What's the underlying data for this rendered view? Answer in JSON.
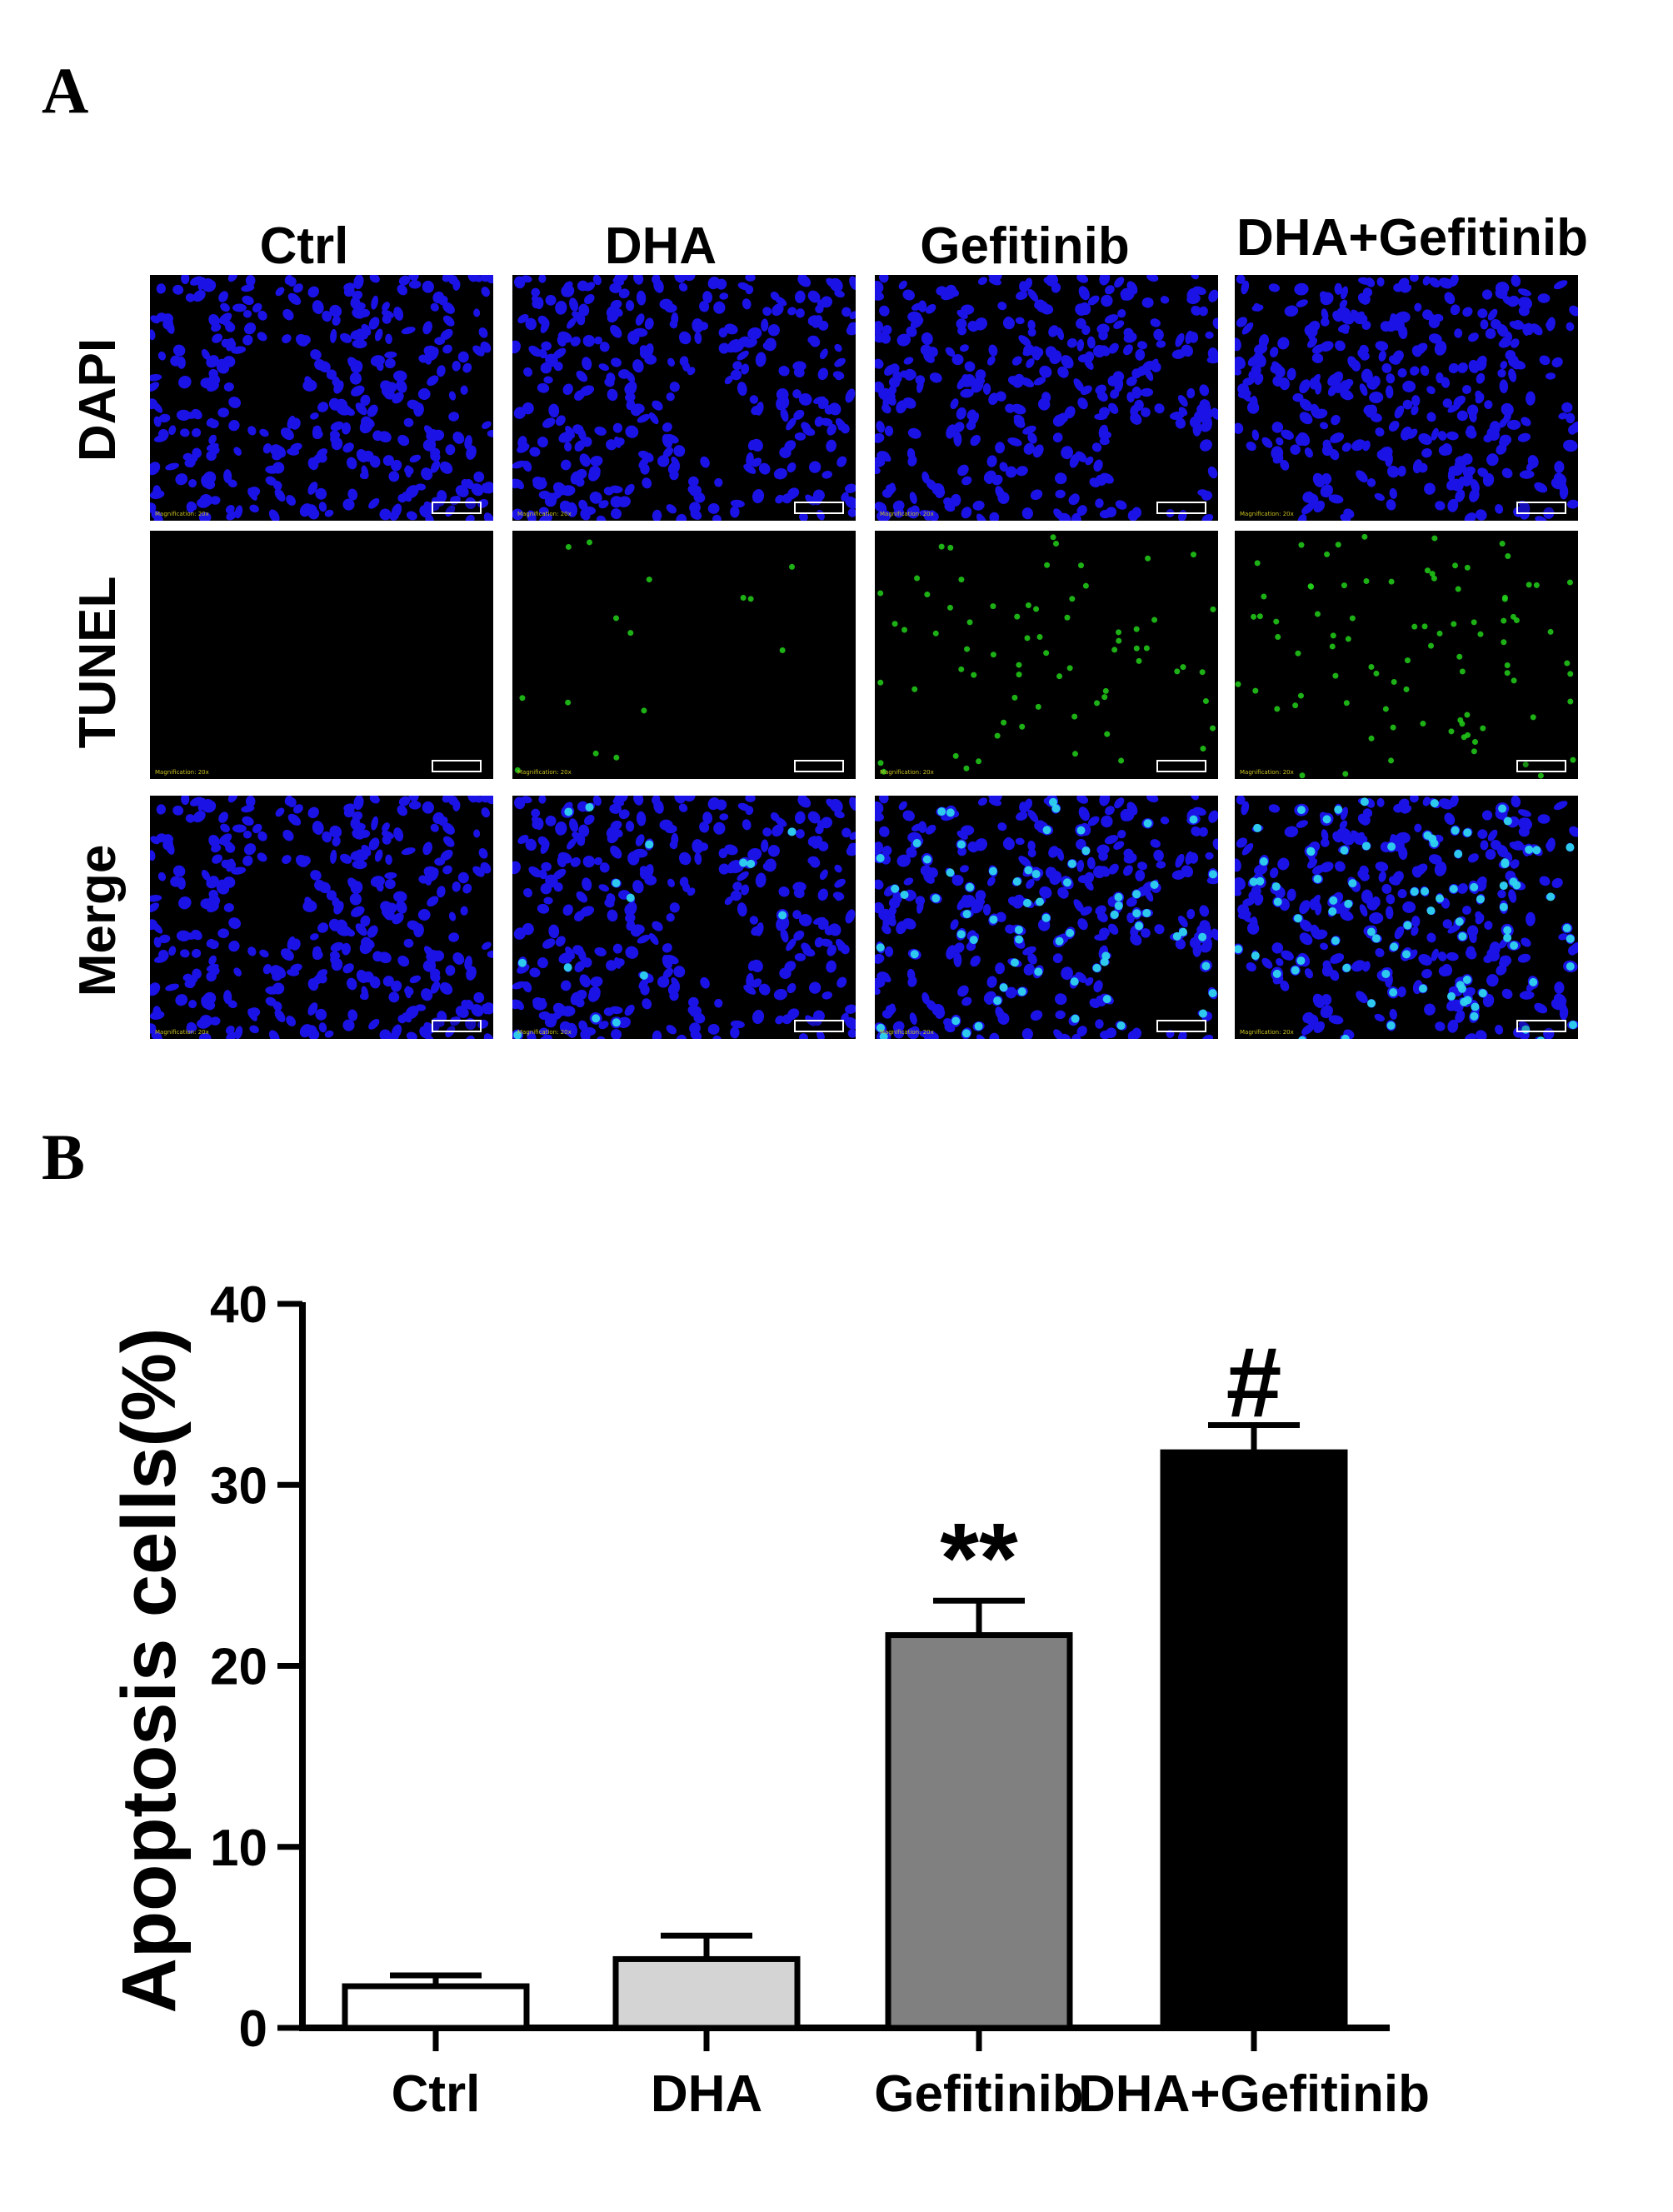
{
  "panel_a": {
    "letter": "A",
    "columns": [
      "Ctrl",
      "DHA",
      "Gefitinib",
      "DHA+Gefitinib"
    ],
    "rows": [
      "DAPI",
      "TUNEL",
      "Merge"
    ],
    "image_overlay": {
      "magnification": "Magnification: 20x",
      "scale_bar": "50 μm"
    },
    "colors": {
      "dapi": "#1b12e6",
      "tunel": "#22d01a",
      "merge_positive": "#2fd5ee",
      "background": "#000000"
    },
    "tunel_positive_level": [
      0.0,
      0.04,
      0.22,
      0.32
    ]
  },
  "panel_b": {
    "letter": "B",
    "chart_data": {
      "type": "bar",
      "categories": [
        "Ctrl",
        "DHA",
        "Gefitinib",
        "DHA+Gefitinib"
      ],
      "values": [
        2.3,
        3.8,
        21.7,
        31.8
      ],
      "errors": [
        0.6,
        1.3,
        1.9,
        1.5
      ],
      "bar_colors": [
        "#ffffff",
        "#d4d4d4",
        "#808080",
        "#000000"
      ],
      "annotations": [
        "",
        "",
        "**",
        "#"
      ],
      "ylabel": "Apoptosis cells(%)",
      "xlabel": "",
      "ylim": [
        0,
        40
      ],
      "yticks": [
        0,
        10,
        20,
        30,
        40
      ],
      "grid": false,
      "legend": "none"
    }
  }
}
